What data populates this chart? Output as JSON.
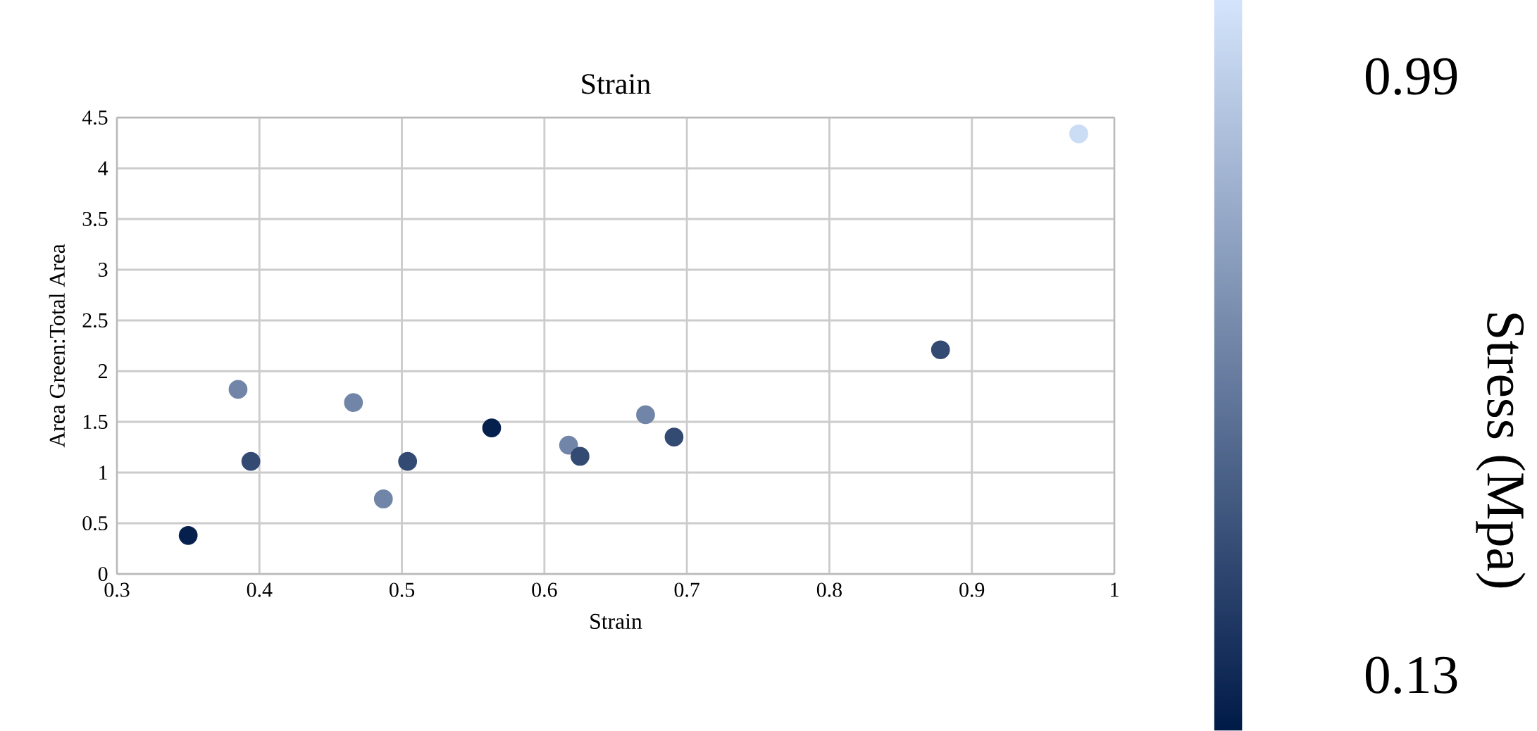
{
  "chart_data": {
    "type": "scatter",
    "title": "Strain",
    "xlabel": "Strain",
    "ylabel": "Area Green:Total Area",
    "clabel": "Stress (Mpa)",
    "x": [
      0.35,
      0.385,
      0.394,
      0.466,
      0.487,
      0.504,
      0.563,
      0.617,
      0.625,
      0.671,
      0.691,
      0.878,
      0.975
    ],
    "values": [
      0.38,
      1.82,
      1.11,
      1.69,
      0.74,
      1.11,
      1.44,
      1.27,
      1.16,
      1.57,
      1.35,
      2.21,
      4.34
    ],
    "cvalues": [
      0.08,
      0.6,
      0.3,
      0.6,
      0.6,
      0.3,
      0.08,
      0.6,
      0.3,
      0.6,
      0.3,
      0.3,
      1.05
    ],
    "clim": [
      0.05,
      1.1
    ],
    "cticks": [
      0.13,
      0.99
    ],
    "xlim": [
      0.3,
      1
    ],
    "xticks": [
      0.3,
      0.4,
      0.5,
      0.6,
      0.7,
      0.8,
      0.9,
      1
    ],
    "ylim": [
      0,
      4.5
    ],
    "yticks": [
      0,
      0.5,
      1,
      1.5,
      2,
      2.5,
      3,
      3.5,
      4,
      4.5
    ],
    "grid": true,
    "marker": "circle"
  }
}
